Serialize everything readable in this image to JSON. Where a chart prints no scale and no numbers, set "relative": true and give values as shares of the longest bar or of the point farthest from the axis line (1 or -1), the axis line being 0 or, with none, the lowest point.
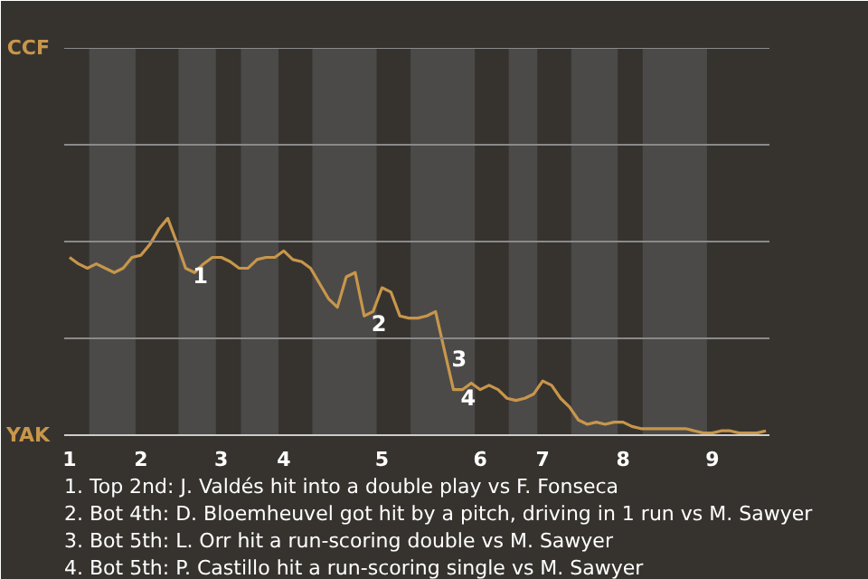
{
  "chart_data": {
    "type": "line",
    "relative": true,
    "categories": [
      "1",
      null,
      null,
      null,
      null,
      null,
      null,
      null,
      "2",
      null,
      null,
      null,
      null,
      null,
      null,
      null,
      null,
      "3",
      null,
      null,
      null,
      null,
      null,
      null,
      "4",
      null,
      null,
      null,
      null,
      null,
      null,
      null,
      null,
      null,
      null,
      "5",
      null,
      null,
      null,
      null,
      null,
      null,
      null,
      null,
      null,
      null,
      "6",
      null,
      null,
      null,
      null,
      null,
      null,
      "7",
      null,
      null,
      null,
      null,
      null,
      null,
      null,
      null,
      "8",
      null,
      null,
      null,
      null,
      null,
      null,
      null,
      null,
      null,
      "9",
      null,
      null,
      null,
      null,
      null,
      null
    ],
    "series": [
      {
        "color": "#c8964b",
        "values": [
          0.82,
          0.79,
          0.77,
          0.79,
          0.77,
          0.75,
          0.77,
          0.82,
          0.83,
          0.88,
          0.95,
          1,
          0.89,
          0.77,
          0.75,
          0.79,
          0.82,
          0.82,
          0.8,
          0.77,
          0.77,
          0.81,
          0.82,
          0.82,
          0.85,
          0.81,
          0.8,
          0.77,
          0.7,
          0.63,
          0.59,
          0.73,
          0.75,
          0.55,
          0.57,
          0.68,
          0.66,
          0.55,
          0.54,
          0.54,
          0.55,
          0.57,
          0.39,
          0.21,
          0.21,
          0.24,
          0.21,
          0.23,
          0.21,
          0.17,
          0.16,
          0.17,
          0.19,
          0.25,
          0.23,
          0.17,
          0.13,
          0.07,
          0.05,
          0.06,
          0.05,
          0.06,
          0.06,
          0.04,
          0.03,
          0.03,
          0.03,
          0.03,
          0.03,
          0.03,
          0.02,
          0.01,
          0.01,
          0.02,
          0.02,
          0.01,
          0.01,
          0.01,
          0.02
        ]
      }
    ],
    "line_style": "solid",
    "ref_lines": [
      {
        "axis": "y",
        "value": 0.446,
        "color": "#8a8a8a"
      },
      {
        "axis": "y",
        "value": 0.893,
        "color": "#8a8a8a"
      },
      {
        "axis": "y",
        "value": 1.339,
        "color": "#8a8a8a"
      },
      {
        "axis": "y",
        "value": 1.786,
        "color": "#8a8a8a"
      }
    ],
    "annotations": [
      "CCF",
      "YAK",
      "1",
      "2",
      "3",
      "4",
      "1. Top 2nd: J. Valdés hit into a double play vs F. Fonseca",
      "2. Bot 4th: D. Bloemheuvel got hit by a pitch, driving in 1 run vs M. Sawyer",
      "3. Bot 5th: L. Orr hit a run-scoring double vs M. Sawyer",
      "4. Bot 5th: P. Castillo hit a run-scoring single vs M. Sawyer"
    ]
  }
}
